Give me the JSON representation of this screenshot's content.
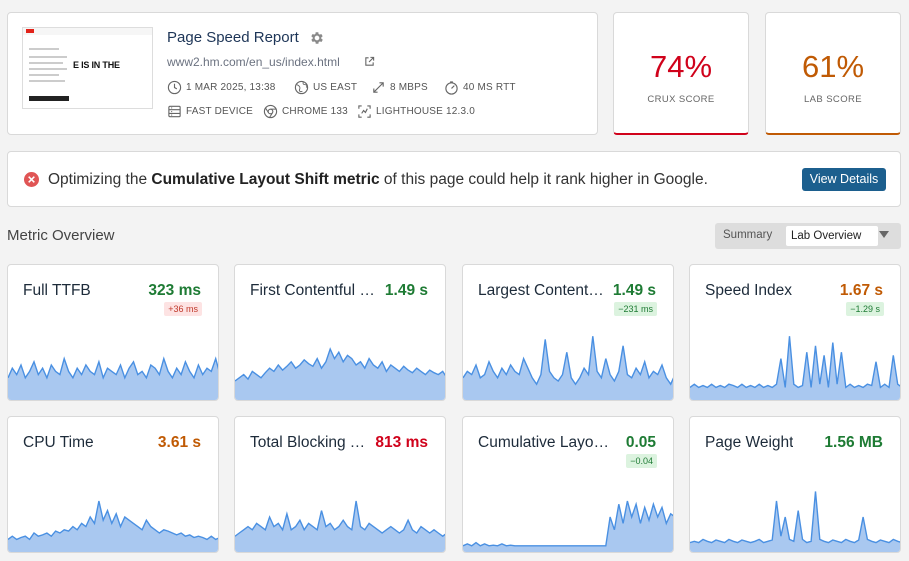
{
  "header": {
    "title": "Page Speed Report",
    "url": "www2.hm.com/en_us/index.html",
    "thumbnail_text": "E IS IN THE",
    "meta": [
      {
        "icon": "clock-icon",
        "text": "1 MAR 2025, 13:38"
      },
      {
        "icon": "globe-icon",
        "text": "US EAST"
      },
      {
        "icon": "bandwidth-icon",
        "text": "8 MBPS"
      },
      {
        "icon": "latency-icon",
        "text": "40 MS RTT"
      },
      {
        "icon": "device-icon",
        "text": "FAST DEVICE"
      },
      {
        "icon": "chrome-icon",
        "text": "CHROME 133"
      },
      {
        "icon": "lighthouse-icon",
        "text": "LIGHTHOUSE 12.3.0"
      }
    ]
  },
  "scores": {
    "crux": {
      "value": "74%",
      "label": "CRUX SCORE",
      "color": "#d0021b"
    },
    "lab": {
      "value": "61%",
      "label": "LAB SCORE",
      "color": "#c05a04"
    }
  },
  "banner": {
    "prefix": "Optimizing the ",
    "highlight": "Cumulative Layout Shift metric",
    "suffix": " of this page could help it rank higher in Google.",
    "button": "View Details"
  },
  "section": {
    "title": "Metric Overview",
    "toggle_options": [
      "Summary",
      "Lab Overview"
    ],
    "selected": "Lab Overview"
  },
  "colors": {
    "good": "#1e7b34",
    "needs_improvement": "#c05a04",
    "poor": "#d0021b",
    "spark_fill": "#a9c8f0",
    "spark_line": "#4a90e2"
  },
  "metrics": [
    {
      "name": "Full TTFB",
      "value": "323 ms",
      "status": "good",
      "delta": "+36 ms",
      "delta_type": "bad",
      "series": [
        0.3,
        0.45,
        0.35,
        0.5,
        0.3,
        0.4,
        0.55,
        0.35,
        0.45,
        0.3,
        0.5,
        0.4,
        0.35,
        0.6,
        0.4,
        0.3,
        0.45,
        0.35,
        0.5,
        0.4,
        0.35,
        0.55,
        0.3,
        0.45,
        0.4,
        0.35,
        0.5,
        0.3,
        0.45,
        0.55,
        0.35,
        0.4,
        0.3,
        0.5,
        0.45,
        0.35,
        0.6,
        0.4,
        0.3,
        0.45,
        0.35,
        0.55,
        0.4,
        0.3,
        0.5,
        0.35,
        0.45,
        0.4,
        0.6,
        0.35
      ]
    },
    {
      "name": "First Contentful Paint",
      "value": "1.49 s",
      "status": "good",
      "delta": "",
      "delta_type": "",
      "series": [
        0.25,
        0.3,
        0.35,
        0.28,
        0.4,
        0.35,
        0.3,
        0.38,
        0.45,
        0.4,
        0.5,
        0.42,
        0.48,
        0.55,
        0.45,
        0.5,
        0.58,
        0.52,
        0.48,
        0.6,
        0.45,
        0.55,
        0.75,
        0.6,
        0.7,
        0.55,
        0.65,
        0.6,
        0.5,
        0.55,
        0.45,
        0.6,
        0.5,
        0.45,
        0.55,
        0.4,
        0.5,
        0.45,
        0.4,
        0.48,
        0.42,
        0.38,
        0.45,
        0.4,
        0.35,
        0.42,
        0.38,
        0.35,
        0.4,
        0.3
      ]
    },
    {
      "name": "Largest Contentful Paint",
      "value": "1.49 s",
      "status": "good",
      "delta": "−231 ms",
      "delta_type": "good",
      "series": [
        0.3,
        0.4,
        0.35,
        0.5,
        0.3,
        0.35,
        0.55,
        0.4,
        0.3,
        0.45,
        0.35,
        0.5,
        0.4,
        0.35,
        0.6,
        0.45,
        0.3,
        0.2,
        0.35,
        0.9,
        0.4,
        0.3,
        0.25,
        0.35,
        0.7,
        0.3,
        0.2,
        0.3,
        0.45,
        0.35,
        0.95,
        0.4,
        0.3,
        0.6,
        0.35,
        0.25,
        0.4,
        0.8,
        0.35,
        0.3,
        0.45,
        0.35,
        0.55,
        0.3,
        0.4,
        0.35,
        0.5,
        0.3,
        0.2,
        0.35
      ]
    },
    {
      "name": "Speed Index",
      "value": "1.67 s",
      "status": "needs_improvement",
      "delta": "−1.29 s",
      "delta_type": "good",
      "series": [
        0.15,
        0.2,
        0.15,
        0.18,
        0.15,
        0.2,
        0.15,
        0.18,
        0.15,
        0.2,
        0.18,
        0.15,
        0.2,
        0.15,
        0.18,
        0.15,
        0.2,
        0.15,
        0.18,
        0.15,
        0.2,
        0.6,
        0.15,
        0.95,
        0.2,
        0.15,
        0.18,
        0.7,
        0.15,
        0.8,
        0.2,
        0.65,
        0.15,
        0.85,
        0.2,
        0.7,
        0.15,
        0.2,
        0.15,
        0.18,
        0.15,
        0.2,
        0.18,
        0.55,
        0.15,
        0.2,
        0.15,
        0.65,
        0.2,
        0.15
      ]
    },
    {
      "name": "CPU Time",
      "value": "3.61 s",
      "status": "needs_improvement",
      "delta": "",
      "delta_type": "",
      "series": [
        0.15,
        0.2,
        0.15,
        0.18,
        0.2,
        0.15,
        0.25,
        0.2,
        0.22,
        0.25,
        0.2,
        0.28,
        0.25,
        0.3,
        0.28,
        0.35,
        0.3,
        0.4,
        0.35,
        0.5,
        0.4,
        0.75,
        0.45,
        0.6,
        0.4,
        0.55,
        0.35,
        0.5,
        0.45,
        0.4,
        0.35,
        0.3,
        0.45,
        0.35,
        0.3,
        0.25,
        0.3,
        0.28,
        0.25,
        0.22,
        0.25,
        0.2,
        0.22,
        0.18,
        0.2,
        0.18,
        0.15,
        0.2,
        0.15,
        0.18
      ]
    },
    {
      "name": "Total Blocking Time",
      "value": "813 ms",
      "status": "poor",
      "delta": "",
      "delta_type": "",
      "series": [
        0.2,
        0.25,
        0.3,
        0.35,
        0.3,
        0.4,
        0.35,
        0.3,
        0.5,
        0.35,
        0.4,
        0.3,
        0.55,
        0.3,
        0.35,
        0.45,
        0.3,
        0.4,
        0.35,
        0.3,
        0.6,
        0.35,
        0.4,
        0.3,
        0.35,
        0.45,
        0.35,
        0.3,
        0.75,
        0.35,
        0.3,
        0.4,
        0.35,
        0.3,
        0.25,
        0.3,
        0.35,
        0.3,
        0.25,
        0.3,
        0.45,
        0.3,
        0.25,
        0.35,
        0.3,
        0.25,
        0.3,
        0.25,
        0.2,
        0.25
      ]
    },
    {
      "name": "Cumulative Layout Shift",
      "value": "0.05",
      "status": "good",
      "delta": "−0.04",
      "delta_type": "good",
      "series": [
        0.05,
        0.08,
        0.05,
        0.1,
        0.05,
        0.08,
        0.05,
        0.06,
        0.05,
        0.08,
        0.05,
        0.06,
        0.05,
        0.05,
        0.05,
        0.05,
        0.05,
        0.05,
        0.05,
        0.05,
        0.05,
        0.05,
        0.05,
        0.05,
        0.05,
        0.05,
        0.05,
        0.05,
        0.05,
        0.05,
        0.05,
        0.05,
        0.05,
        0.05,
        0.5,
        0.3,
        0.7,
        0.4,
        0.75,
        0.5,
        0.7,
        0.4,
        0.65,
        0.45,
        0.7,
        0.5,
        0.65,
        0.4,
        0.55,
        0.5
      ]
    },
    {
      "name": "Page Weight",
      "value": "1.56 MB",
      "status": "good",
      "delta": "",
      "delta_type": "",
      "series": [
        0.1,
        0.12,
        0.1,
        0.15,
        0.12,
        0.1,
        0.14,
        0.12,
        0.1,
        0.15,
        0.12,
        0.1,
        0.14,
        0.12,
        0.1,
        0.12,
        0.15,
        0.1,
        0.12,
        0.14,
        0.75,
        0.2,
        0.5,
        0.15,
        0.12,
        0.6,
        0.15,
        0.1,
        0.12,
        0.9,
        0.15,
        0.12,
        0.1,
        0.14,
        0.12,
        0.1,
        0.15,
        0.12,
        0.1,
        0.14,
        0.5,
        0.15,
        0.12,
        0.1,
        0.14,
        0.12,
        0.1,
        0.15,
        0.12,
        0.1
      ]
    }
  ]
}
